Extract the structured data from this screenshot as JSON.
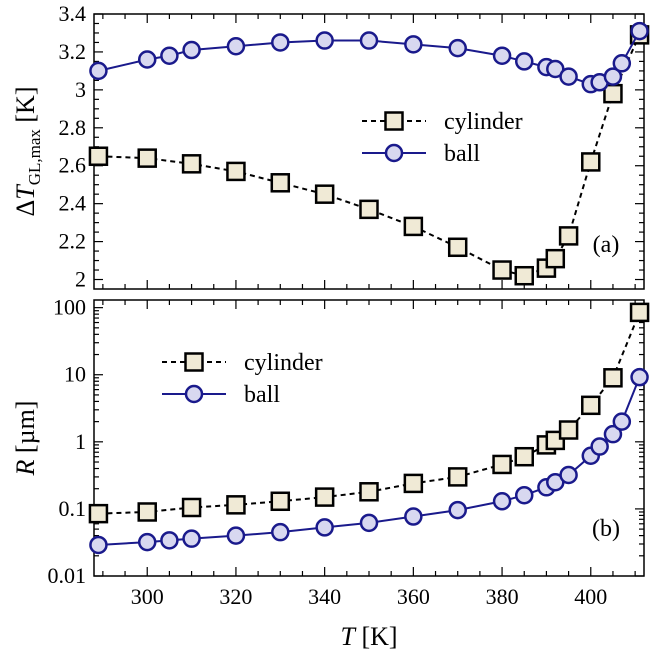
{
  "chart_data": [
    {
      "type": "line",
      "panel": "(a)",
      "ylabel_symbol": "ΔT",
      "ylabel_sub": "GL,max",
      "ylabel_unit": "[K]",
      "xlabel": "",
      "ylim": [
        1.95,
        3.4
      ],
      "yscale": "linear",
      "xlim": [
        288,
        412
      ],
      "ytick_labels": [
        "2",
        "2.2",
        "2.4",
        "2.6",
        "2.8",
        "3",
        "3.2",
        "3.4"
      ],
      "yticks": [
        2,
        2.2,
        2.4,
        2.6,
        2.8,
        3.0,
        3.2,
        3.4
      ],
      "legend": "center-right",
      "series": [
        {
          "name": "cylinder",
          "marker": "square",
          "linestyle": "dashed",
          "color": "#000000",
          "marker_fill": "#f0ead6",
          "x": [
            289,
            300,
            310,
            320,
            330,
            340,
            350,
            360,
            370,
            380,
            385,
            390,
            392,
            395,
            400,
            405,
            411
          ],
          "y": [
            2.65,
            2.64,
            2.61,
            2.57,
            2.51,
            2.45,
            2.37,
            2.28,
            2.17,
            2.05,
            2.02,
            2.06,
            2.11,
            2.23,
            2.62,
            2.98,
            3.29
          ]
        },
        {
          "name": "ball",
          "marker": "circle",
          "linestyle": "solid",
          "color": "#1a1a8c",
          "marker_fill": "#d8d8f0",
          "x": [
            289,
            300,
            305,
            310,
            320,
            330,
            340,
            350,
            360,
            370,
            380,
            385,
            390,
            392,
            395,
            400,
            402,
            405,
            407,
            411
          ],
          "y": [
            3.1,
            3.16,
            3.18,
            3.21,
            3.23,
            3.25,
            3.26,
            3.26,
            3.24,
            3.22,
            3.18,
            3.15,
            3.12,
            3.11,
            3.07,
            3.03,
            3.04,
            3.07,
            3.14,
            3.31
          ]
        }
      ]
    },
    {
      "type": "line",
      "panel": "(b)",
      "ylabel_symbol": "R",
      "ylabel_unit": "[µm]",
      "xlabel_symbol": "T",
      "xlabel_unit": "[K]",
      "yscale": "log",
      "ylim": [
        0.01,
        130
      ],
      "xlim": [
        288,
        412
      ],
      "xticks": [
        300,
        320,
        340,
        360,
        380,
        400
      ],
      "xtick_labels": [
        "300",
        "320",
        "340",
        "360",
        "380",
        "400"
      ],
      "yticks": [
        0.01,
        0.1,
        1,
        10,
        100
      ],
      "ytick_labels": [
        "0.01",
        "0.1",
        "1",
        "10",
        "100"
      ],
      "legend": "top-left",
      "series": [
        {
          "name": "cylinder",
          "marker": "square",
          "linestyle": "dashed",
          "color": "#000000",
          "marker_fill": "#f0ead6",
          "x": [
            289,
            300,
            310,
            320,
            330,
            340,
            350,
            360,
            370,
            380,
            385,
            390,
            392,
            395,
            400,
            405,
            411
          ],
          "y": [
            0.085,
            0.09,
            0.105,
            0.115,
            0.13,
            0.15,
            0.18,
            0.24,
            0.3,
            0.46,
            0.6,
            0.9,
            1.05,
            1.5,
            3.5,
            9.0,
            85
          ]
        },
        {
          "name": "ball",
          "marker": "circle",
          "linestyle": "solid",
          "color": "#1a1a8c",
          "marker_fill": "#d8d8f0",
          "x": [
            289,
            300,
            305,
            310,
            320,
            330,
            340,
            350,
            360,
            370,
            380,
            385,
            390,
            392,
            395,
            400,
            402,
            405,
            407,
            411
          ],
          "y": [
            0.029,
            0.032,
            0.034,
            0.036,
            0.04,
            0.045,
            0.053,
            0.062,
            0.077,
            0.096,
            0.13,
            0.16,
            0.21,
            0.25,
            0.32,
            0.62,
            0.85,
            1.3,
            2.0,
            9.2
          ]
        }
      ]
    }
  ]
}
